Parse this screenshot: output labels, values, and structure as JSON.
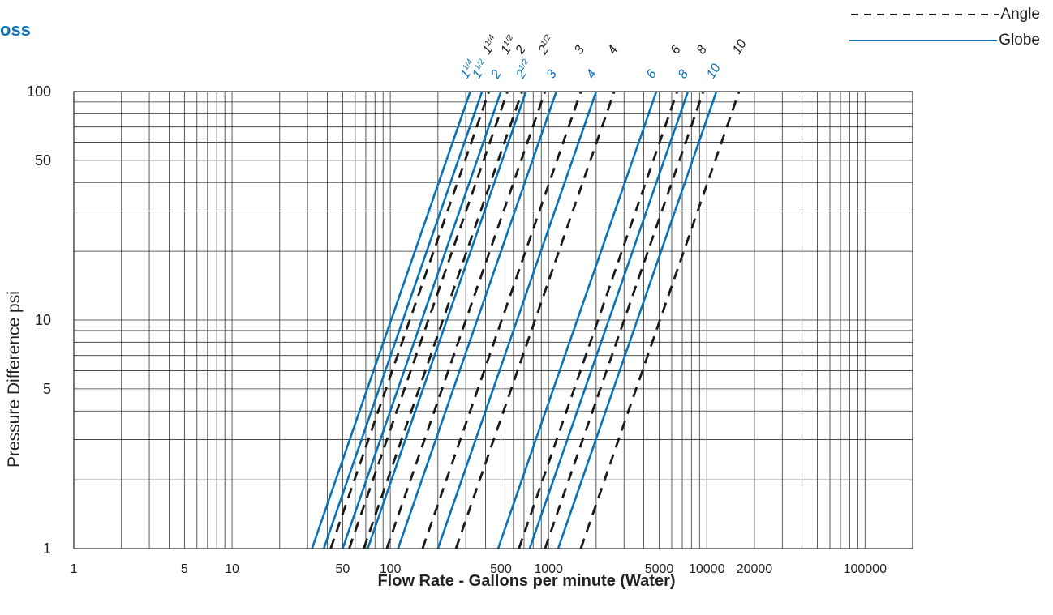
{
  "title_fragment": "oss",
  "legend": {
    "angle_label": "Angle",
    "globe_label": "Globe",
    "angle_color": "#1a1a1a",
    "globe_color": "#0a72b8"
  },
  "chart_data": {
    "type": "line",
    "xlabel": "Flow Rate - Gallons per minute (Water)",
    "ylabel": "Pressure Difference psi",
    "x_scale": "log",
    "y_scale": "log",
    "xlim": [
      1,
      200000
    ],
    "ylim": [
      1,
      100
    ],
    "grid": true,
    "legend_position": "top-right",
    "x_tick_labels": [
      {
        "value": 1,
        "label": "1"
      },
      {
        "value": 5,
        "label": "5"
      },
      {
        "value": 10,
        "label": "10"
      },
      {
        "value": 50,
        "label": "50"
      },
      {
        "value": 100,
        "label": "100"
      },
      {
        "value": 500,
        "label": "500"
      },
      {
        "value": 1000,
        "label": "1000"
      },
      {
        "value": 5000,
        "label": "5000"
      },
      {
        "value": 10000,
        "label": "10000"
      },
      {
        "value": 20000,
        "label": "20000"
      },
      {
        "value": 100000,
        "label": "100000"
      }
    ],
    "y_tick_labels": [
      {
        "value": 1,
        "label": "1"
      },
      {
        "value": 5,
        "label": "5"
      },
      {
        "value": 10,
        "label": "10"
      },
      {
        "value": 50,
        "label": "50"
      },
      {
        "value": 100,
        "label": "100"
      }
    ],
    "series": [
      {
        "name": "1 1/4",
        "group": "Globe",
        "size_main": "1",
        "size_frac": "1/4",
        "x": [
          32,
          320
        ],
        "y": [
          1,
          100
        ]
      },
      {
        "name": "1 1/2",
        "group": "Globe",
        "size_main": "1",
        "size_frac": "1/2",
        "x": [
          38,
          380
        ],
        "y": [
          1,
          100
        ]
      },
      {
        "name": "2",
        "group": "Globe",
        "size_main": "2",
        "size_frac": "",
        "x": [
          50,
          500
        ],
        "y": [
          1,
          100
        ]
      },
      {
        "name": "2 1/2",
        "group": "Globe",
        "size_main": "2",
        "size_frac": "1/2",
        "x": [
          72,
          720
        ],
        "y": [
          1,
          100
        ]
      },
      {
        "name": "3",
        "group": "Globe",
        "size_main": "3",
        "size_frac": "",
        "x": [
          112,
          1120
        ],
        "y": [
          1,
          100
        ]
      },
      {
        "name": "4",
        "group": "Globe",
        "size_main": "4",
        "size_frac": "",
        "x": [
          200,
          2000
        ],
        "y": [
          1,
          100
        ]
      },
      {
        "name": "6",
        "group": "Globe",
        "size_main": "6",
        "size_frac": "",
        "x": [
          480,
          4800
        ],
        "y": [
          1,
          100
        ]
      },
      {
        "name": "8",
        "group": "Globe",
        "size_main": "8",
        "size_frac": "",
        "x": [
          760,
          7600
        ],
        "y": [
          1,
          100
        ]
      },
      {
        "name": "10",
        "group": "Globe",
        "size_main": "10",
        "size_frac": "",
        "x": [
          1150,
          11500
        ],
        "y": [
          1,
          100
        ]
      },
      {
        "name": "1 1/4",
        "group": "Angle",
        "size_main": "1",
        "size_frac": "1/4",
        "x": [
          42,
          420
        ],
        "y": [
          1,
          100
        ]
      },
      {
        "name": "1 1/2",
        "group": "Angle",
        "size_main": "1",
        "size_frac": "1/2",
        "x": [
          55,
          550
        ],
        "y": [
          1,
          100
        ]
      },
      {
        "name": "2",
        "group": "Angle",
        "size_main": "2",
        "size_frac": "",
        "x": [
          68,
          680
        ],
        "y": [
          1,
          100
        ]
      },
      {
        "name": "2 1/2",
        "group": "Angle",
        "size_main": "2",
        "size_frac": "1/2",
        "x": [
          95,
          950
        ],
        "y": [
          1,
          100
        ]
      },
      {
        "name": "3",
        "group": "Angle",
        "size_main": "3",
        "size_frac": "",
        "x": [
          160,
          1600
        ],
        "y": [
          1,
          100
        ]
      },
      {
        "name": "4",
        "group": "Angle",
        "size_main": "4",
        "size_frac": "",
        "x": [
          260,
          2600
        ],
        "y": [
          1,
          100
        ]
      },
      {
        "name": "6",
        "group": "Angle",
        "size_main": "6",
        "size_frac": "",
        "x": [
          650,
          6500
        ],
        "y": [
          1,
          100
        ]
      },
      {
        "name": "8",
        "group": "Angle",
        "size_main": "8",
        "size_frac": "",
        "x": [
          950,
          9500
        ],
        "y": [
          1,
          100
        ]
      },
      {
        "name": "10",
        "group": "Angle",
        "size_main": "10",
        "size_frac": "",
        "x": [
          1600,
          16000
        ],
        "y": [
          1,
          100
        ]
      }
    ]
  }
}
